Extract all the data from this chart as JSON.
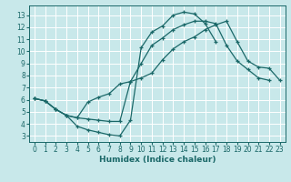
{
  "xlabel": "Humidex (Indice chaleur)",
  "bg_color": "#c8e8ea",
  "line_color": "#1a6868",
  "grid_color": "#ffffff",
  "xlim": [
    -0.5,
    23.5
  ],
  "ylim": [
    2.5,
    13.8
  ],
  "xticks": [
    0,
    1,
    2,
    3,
    4,
    5,
    6,
    7,
    8,
    9,
    10,
    11,
    12,
    13,
    14,
    15,
    16,
    17,
    18,
    19,
    20,
    21,
    22,
    23
  ],
  "yticks": [
    3,
    4,
    5,
    6,
    7,
    8,
    9,
    10,
    11,
    12,
    13
  ],
  "curve1_x": [
    0,
    1,
    2,
    3,
    4,
    5,
    6,
    7,
    8,
    9,
    10,
    11,
    12,
    13,
    14,
    15,
    16,
    17,
    18,
    19,
    20,
    21,
    22,
    23
  ],
  "curve1_y": [
    6.1,
    5.9,
    5.2,
    4.7,
    3.8,
    3.5,
    3.3,
    3.1,
    3.0,
    4.3,
    10.3,
    11.6,
    12.1,
    13.0,
    13.25,
    13.1,
    12.3,
    10.8,
    null,
    null,
    null,
    null,
    null,
    null
  ],
  "curve2_x": [
    0,
    1,
    2,
    3,
    4,
    5,
    6,
    7,
    8,
    9,
    10,
    11,
    12,
    13,
    14,
    15,
    16,
    17,
    18,
    19,
    20,
    21,
    22,
    23
  ],
  "curve2_y": [
    6.1,
    5.9,
    5.2,
    4.7,
    4.5,
    4.4,
    4.3,
    4.2,
    4.2,
    7.5,
    9.0,
    10.5,
    11.1,
    11.8,
    12.2,
    12.5,
    12.5,
    12.3,
    10.5,
    9.2,
    8.5,
    7.8,
    7.6,
    null
  ],
  "curve3_x": [
    0,
    1,
    2,
    3,
    4,
    5,
    6,
    7,
    8,
    9,
    10,
    11,
    12,
    13,
    14,
    15,
    16,
    17,
    18,
    19,
    20,
    21,
    22,
    23
  ],
  "curve3_y": [
    6.1,
    5.9,
    5.2,
    4.7,
    4.5,
    5.8,
    6.2,
    6.5,
    7.3,
    7.5,
    7.8,
    8.2,
    9.3,
    10.2,
    10.8,
    11.2,
    11.8,
    12.2,
    12.5,
    10.8,
    9.2,
    8.7,
    8.6,
    7.6
  ]
}
